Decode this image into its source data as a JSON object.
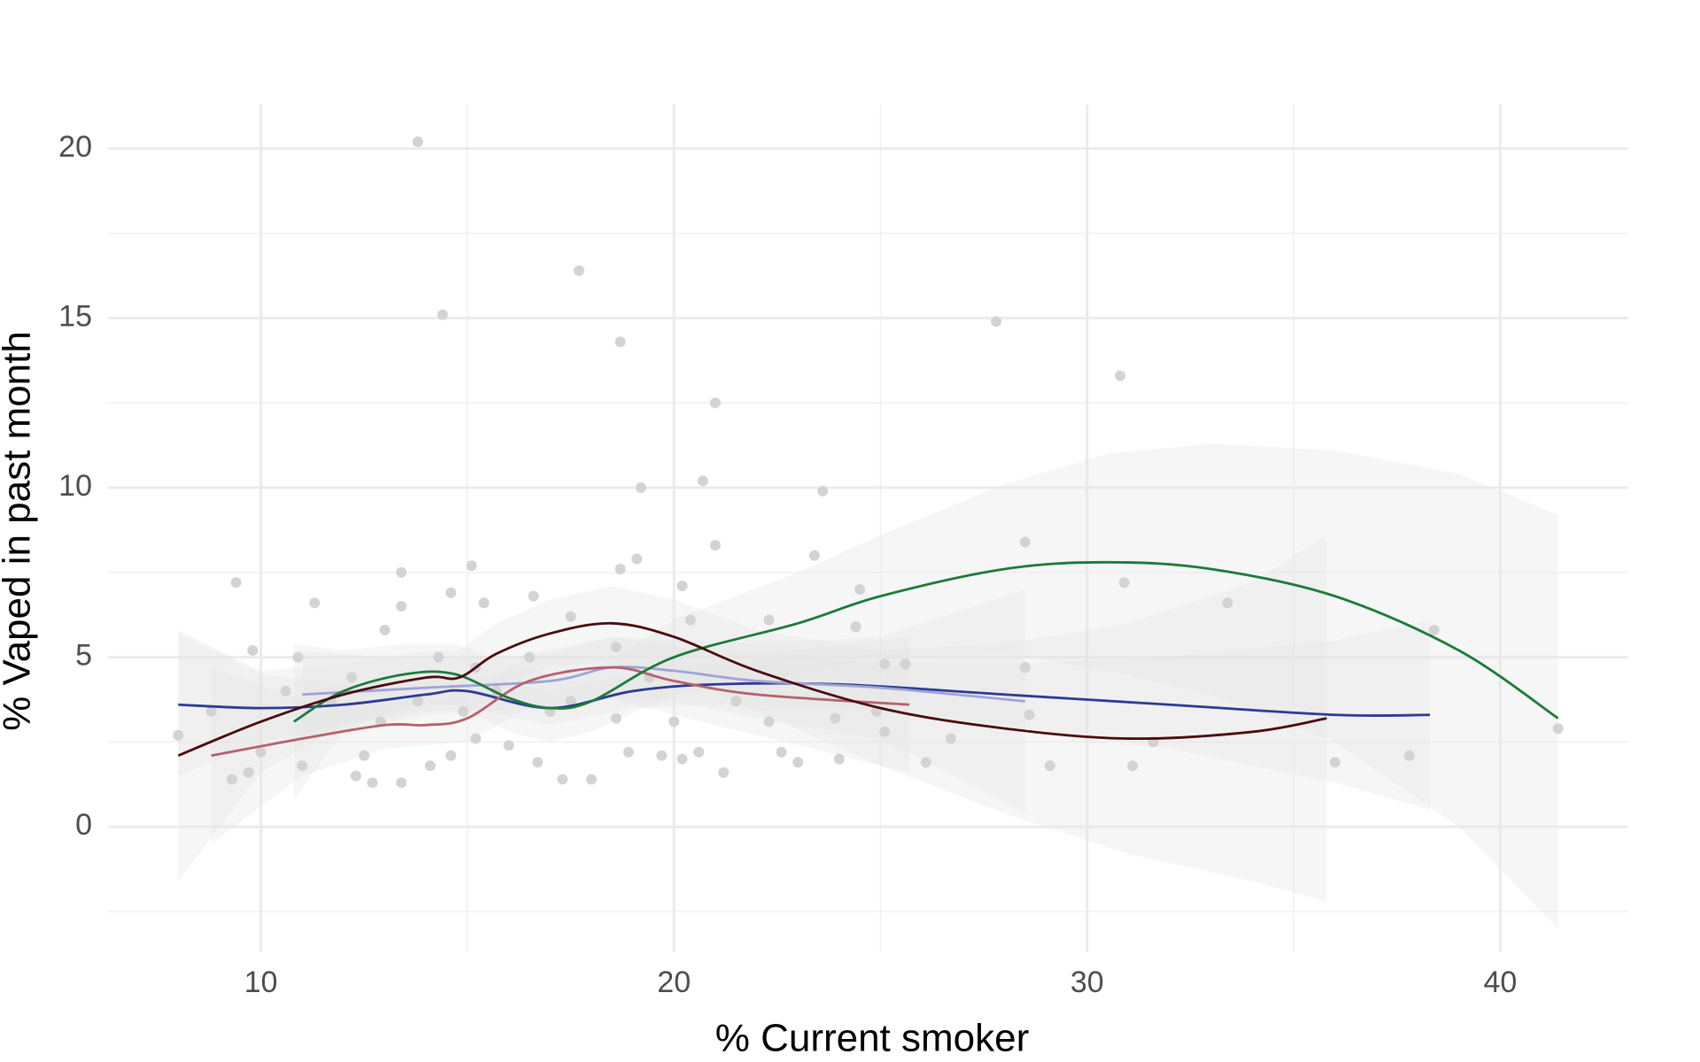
{
  "chart_data": {
    "type": "scatter",
    "xlabel": "% Current smoker",
    "ylabel": "% Vaped in past month",
    "xlim": [
      6.3,
      43.1
    ],
    "ylim": [
      -3.7,
      21.3
    ],
    "xticks": [
      10,
      20,
      30,
      40
    ],
    "yticks": [
      0,
      5,
      10,
      15,
      20
    ],
    "x_minor_grid": [
      15,
      25,
      35
    ],
    "y_minor_grid": [
      -2.5,
      2.5,
      7.5,
      12.5,
      17.5
    ],
    "grid": true,
    "point_color": "#d3d3d3",
    "band_color": "#e6e6e6",
    "x": [
      13.8,
      17.7,
      14.4,
      18.7,
      27.8,
      30.8,
      21.0,
      19.2,
      20.7,
      23.6,
      21.0,
      28.5,
      23.4,
      15.1,
      9.4,
      30.9,
      13.4,
      19.1,
      18.7,
      33.4,
      11.3,
      15.4,
      16.6,
      17.5,
      24.5,
      20.2,
      9.8,
      10.9,
      13.0,
      13.4,
      14.6,
      38.4,
      24.4,
      28.5,
      25.6,
      25.1,
      8.0,
      8.8,
      9.3,
      9.7,
      10.0,
      11.0,
      12.3,
      12.7,
      13.4,
      14.1,
      14.6,
      16.0,
      16.7,
      17.3,
      18.0,
      18.9,
      19.7,
      20.2,
      20.6,
      21.2,
      22.6,
      23.0,
      24.0,
      25.1,
      26.1,
      26.7,
      28.6,
      29.1,
      31.1,
      31.6,
      36.0,
      37.8,
      41.4,
      11.7,
      12.9,
      13.8,
      14.9,
      15.7,
      17.0,
      17.5,
      18.6,
      19.4,
      20.0,
      21.5,
      22.3,
      23.9,
      24.9,
      14.3,
      15.2,
      16.5,
      18.6,
      20.4,
      22.3,
      12.2,
      10.6,
      12.5,
      15.2
    ],
    "y": [
      20.2,
      16.4,
      15.1,
      14.3,
      14.9,
      13.3,
      12.5,
      10.0,
      10.2,
      9.9,
      8.3,
      8.4,
      8.0,
      7.7,
      7.2,
      7.2,
      7.5,
      7.9,
      7.6,
      6.6,
      6.6,
      6.6,
      6.8,
      6.2,
      7.0,
      7.1,
      5.2,
      5.0,
      5.8,
      6.5,
      6.9,
      5.8,
      5.9,
      4.7,
      4.8,
      4.8,
      2.7,
      3.4,
      1.4,
      1.6,
      2.2,
      1.8,
      1.5,
      1.3,
      1.3,
      1.8,
      2.1,
      2.4,
      1.9,
      1.4,
      1.4,
      2.2,
      2.1,
      2.0,
      2.2,
      1.6,
      2.2,
      1.9,
      2.0,
      2.8,
      1.9,
      2.6,
      3.3,
      1.8,
      1.8,
      2.5,
      1.9,
      2.1,
      2.9,
      3.7,
      3.1,
      3.7,
      3.4,
      4.0,
      3.4,
      3.7,
      3.2,
      4.4,
      3.1,
      3.7,
      3.1,
      3.2,
      3.4,
      5.0,
      4.7,
      5.0,
      5.3,
      6.1,
      6.1,
      4.4,
      4.0,
      2.1,
      2.6
    ],
    "series": [
      {
        "color": "#2b3b93",
        "x": [
          8,
          10,
          12,
          14,
          15,
          17,
          19,
          21,
          24,
          28,
          32,
          36,
          38.3
        ],
        "values": [
          3.6,
          3.5,
          3.6,
          3.9,
          4.0,
          3.5,
          4.0,
          4.2,
          4.2,
          3.9,
          3.6,
          3.3,
          3.3
        ],
        "lower": [
          1.5,
          2.5,
          3.0,
          3.4,
          3.5,
          3.0,
          3.5,
          3.6,
          3.5,
          3.0,
          2.3,
          1.3,
          0.5
        ],
        "upper": [
          5.7,
          4.5,
          4.2,
          4.4,
          4.5,
          4.0,
          4.5,
          4.8,
          4.9,
          4.8,
          5.0,
          5.5,
          6.1
        ]
      },
      {
        "color": "#9fa3d6",
        "x": [
          11,
          14,
          17,
          18.5,
          20,
          22,
          25,
          28.5
        ],
        "values": [
          3.9,
          4.1,
          4.3,
          4.7,
          4.6,
          4.3,
          4.1,
          3.7
        ],
        "lower": [
          2.6,
          3.3,
          3.5,
          3.8,
          3.7,
          3.2,
          2.6,
          0.4
        ],
        "upper": [
          5.2,
          4.9,
          5.1,
          5.6,
          5.5,
          5.4,
          5.6,
          7.0
        ]
      },
      {
        "color": "#b5606e",
        "x": [
          8.8,
          11,
          13,
          14,
          15,
          16.5,
          18.5,
          20,
          22,
          25.7
        ],
        "values": [
          2.1,
          2.6,
          3.0,
          3.0,
          3.2,
          4.3,
          4.7,
          4.3,
          3.9,
          3.6
        ],
        "lower": [
          -0.5,
          1.5,
          2.3,
          2.4,
          2.5,
          3.5,
          3.8,
          3.3,
          2.7,
          1.6
        ],
        "upper": [
          4.7,
          3.7,
          3.7,
          3.6,
          3.9,
          5.1,
          5.6,
          5.3,
          5.1,
          5.6
        ]
      },
      {
        "color": "#1b7a3a",
        "x": [
          10.8,
          12,
          13.5,
          14.7,
          16,
          17,
          18,
          20,
          23,
          25,
          28,
          30.5,
          33,
          36,
          39,
          41.4
        ],
        "values": [
          3.1,
          4.0,
          4.5,
          4.5,
          3.8,
          3.5,
          3.7,
          5.0,
          6.0,
          6.8,
          7.6,
          7.8,
          7.6,
          6.8,
          5.2,
          3.2
        ],
        "lower": [
          0.8,
          2.8,
          3.6,
          3.6,
          2.8,
          2.5,
          2.8,
          3.9,
          4.5,
          5.0,
          5.1,
          4.6,
          3.9,
          2.5,
          0.0,
          -3.0
        ],
        "upper": [
          5.4,
          5.2,
          5.4,
          5.4,
          4.8,
          4.5,
          4.6,
          6.1,
          7.5,
          8.6,
          10.1,
          11.0,
          11.3,
          11.1,
          10.4,
          9.2
        ]
      },
      {
        "color": "#4a0a0e",
        "x": [
          8,
          10,
          12,
          14,
          14.8,
          15.7,
          17,
          18.5,
          20,
          22,
          25,
          28,
          31,
          34,
          35.8
        ],
        "values": [
          2.1,
          3.1,
          3.9,
          4.4,
          4.4,
          5.1,
          5.7,
          6.0,
          5.6,
          4.6,
          3.5,
          2.9,
          2.6,
          2.8,
          3.2
        ],
        "lower": [
          -1.6,
          1.6,
          3.0,
          3.6,
          3.6,
          4.2,
          4.7,
          4.9,
          4.5,
          3.4,
          1.8,
          0.4,
          -0.8,
          -1.6,
          -2.2
        ],
        "upper": [
          5.8,
          4.6,
          4.8,
          5.2,
          5.2,
          6.0,
          6.7,
          7.1,
          6.7,
          5.8,
          5.2,
          5.4,
          6.0,
          7.2,
          8.6
        ]
      }
    ]
  }
}
